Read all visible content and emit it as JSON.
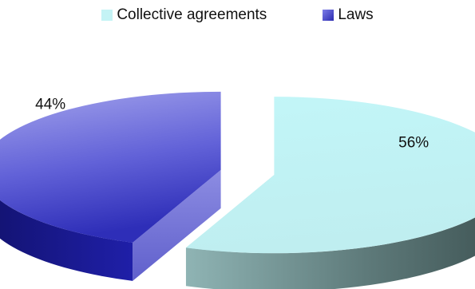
{
  "chart_data": {
    "type": "pie",
    "title": "",
    "categories": [
      "Collective agreements",
      "Laws"
    ],
    "values": [
      56,
      44
    ],
    "value_labels": [
      "56%",
      "44%"
    ],
    "legend_position": "top",
    "exploded": true,
    "style": "3d",
    "colors": {
      "Collective agreements": "#c4f3f5",
      "Laws": "#5b5bd6"
    }
  }
}
